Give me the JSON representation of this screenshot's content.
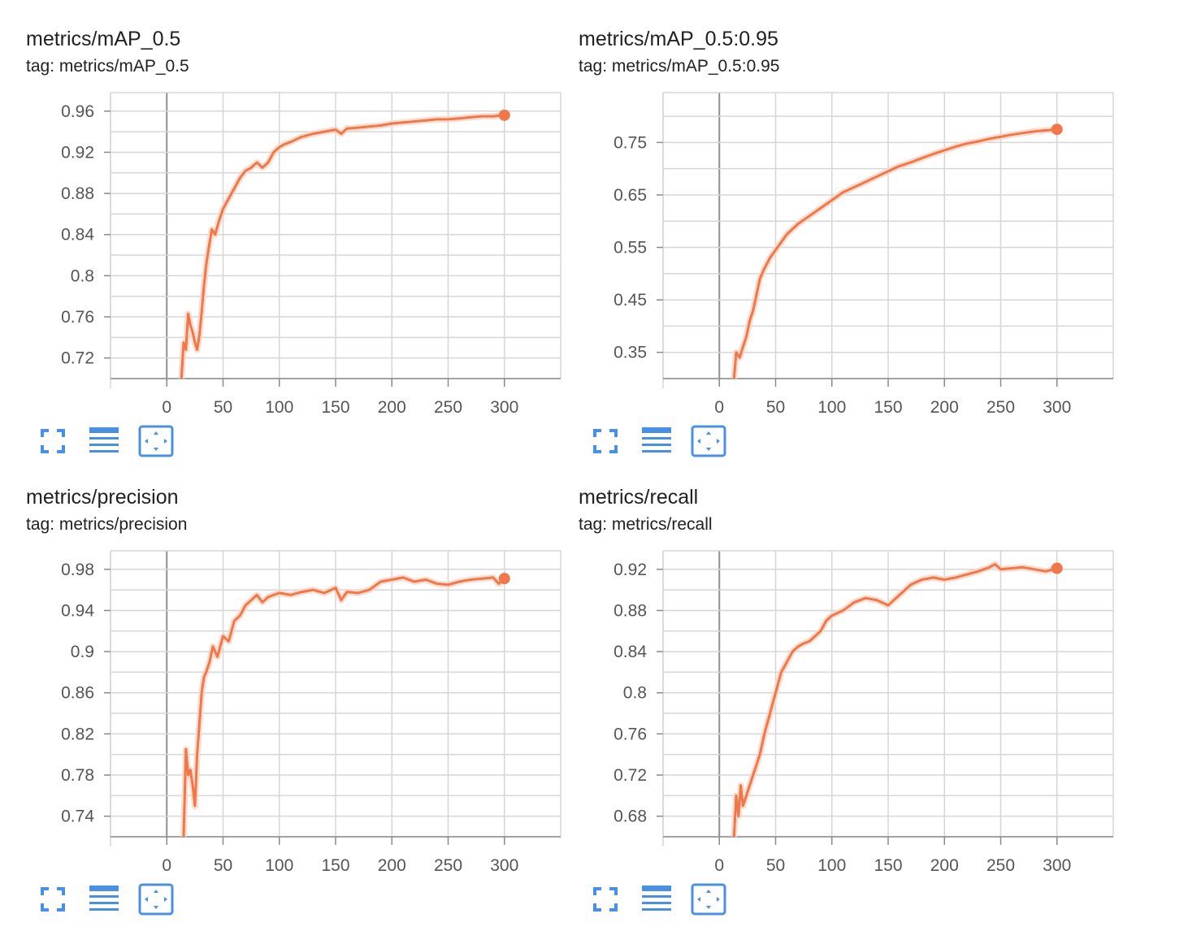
{
  "colors": {
    "line": "#f0774a",
    "raw_line": "#fbd6c5",
    "grid": "#d6d6d6",
    "axis": "#8a8a8a",
    "zero_line": "#8f8f8f",
    "icon": "#4a90e2"
  },
  "toolbar_icons": [
    "fullscreen-icon",
    "data-table-icon",
    "fit-domain-icon"
  ],
  "cards": [
    {
      "title": "metrics/mAP_0.5",
      "tag": "tag: metrics/mAP_0.5",
      "chart_data": {
        "type": "line",
        "title": "metrics/mAP_0.5",
        "x_ticks": [
          "0",
          "50",
          "100",
          "150",
          "200",
          "250",
          "300"
        ],
        "y_ticks": [
          "0.72",
          "0.76",
          "0.8",
          "0.84",
          "0.88",
          "0.92",
          "0.96"
        ],
        "y_tick_values": [
          0.72,
          0.76,
          0.8,
          0.84,
          0.88,
          0.92,
          0.96
        ],
        "xlim": [
          -50,
          350
        ],
        "ylim": [
          0.7,
          0.978
        ],
        "grid": true,
        "series": [
          {
            "x": [
              13,
              15,
              17,
              19,
              21,
              23,
              25,
              27,
              29,
              31,
              33,
              35,
              37,
              40,
              43,
              46,
              50,
              55,
              60,
              65,
              70,
              75,
              80,
              85,
              90,
              95,
              100,
              105,
              110,
              120,
              130,
              140,
              150,
              155,
              160,
              170,
              180,
              190,
              200,
              210,
              220,
              230,
              240,
              250,
              260,
              270,
              280,
              290,
              300
            ],
            "y": [
              0.7,
              0.735,
              0.728,
              0.763,
              0.752,
              0.745,
              0.735,
              0.728,
              0.742,
              0.765,
              0.79,
              0.81,
              0.825,
              0.845,
              0.84,
              0.852,
              0.865,
              0.875,
              0.885,
              0.895,
              0.902,
              0.905,
              0.91,
              0.905,
              0.91,
              0.92,
              0.925,
              0.928,
              0.93,
              0.935,
              0.938,
              0.94,
              0.942,
              0.938,
              0.943,
              0.944,
              0.945,
              0.946,
              0.948,
              0.949,
              0.95,
              0.951,
              0.952,
              0.952,
              0.953,
              0.954,
              0.955,
              0.955,
              0.956
            ]
          }
        ]
      }
    },
    {
      "title": "metrics/mAP_0.5:0.95",
      "tag": "tag: metrics/mAP_0.5:0.95",
      "chart_data": {
        "type": "line",
        "title": "metrics/mAP_0.5:0.95",
        "x_ticks": [
          "0",
          "50",
          "100",
          "150",
          "200",
          "250",
          "300"
        ],
        "y_ticks": [
          "0.35",
          "0.45",
          "0.55",
          "0.65",
          "0.75"
        ],
        "y_tick_values": [
          0.35,
          0.45,
          0.55,
          0.65,
          0.75
        ],
        "xlim": [
          -50,
          350
        ],
        "ylim": [
          0.3,
          0.845
        ],
        "grid": true,
        "series": [
          {
            "x": [
              13,
              15,
              18,
              21,
              24,
              27,
              30,
              33,
              36,
              40,
              45,
              50,
              55,
              60,
              70,
              80,
              90,
              100,
              110,
              120,
              130,
              140,
              150,
              160,
              170,
              180,
              190,
              200,
              210,
              220,
              230,
              240,
              250,
              260,
              270,
              280,
              290,
              300
            ],
            "y": [
              0.3,
              0.35,
              0.34,
              0.36,
              0.38,
              0.41,
              0.43,
              0.46,
              0.49,
              0.51,
              0.53,
              0.545,
              0.56,
              0.575,
              0.595,
              0.61,
              0.625,
              0.64,
              0.655,
              0.665,
              0.675,
              0.685,
              0.695,
              0.705,
              0.712,
              0.72,
              0.728,
              0.735,
              0.742,
              0.748,
              0.752,
              0.757,
              0.761,
              0.765,
              0.768,
              0.771,
              0.773,
              0.775
            ]
          }
        ]
      }
    },
    {
      "title": "metrics/precision",
      "tag": "tag: metrics/precision",
      "chart_data": {
        "type": "line",
        "title": "metrics/precision",
        "x_ticks": [
          "0",
          "50",
          "100",
          "150",
          "200",
          "250",
          "300"
        ],
        "y_ticks": [
          "0.74",
          "0.78",
          "0.82",
          "0.86",
          "0.9",
          "0.94",
          "0.98"
        ],
        "y_tick_values": [
          0.74,
          0.78,
          0.82,
          0.86,
          0.9,
          0.94,
          0.98
        ],
        "xlim": [
          -50,
          350
        ],
        "ylim": [
          0.72,
          0.998
        ],
        "grid": true,
        "series": [
          {
            "x": [
              15,
              17,
              19,
              21,
              23,
              25,
              27,
              29,
              31,
              33,
              35,
              38,
              41,
              45,
              50,
              55,
              60,
              65,
              70,
              75,
              80,
              85,
              90,
              95,
              100,
              110,
              120,
              130,
              140,
              150,
              155,
              160,
              170,
              180,
              190,
              200,
              210,
              220,
              230,
              240,
              250,
              260,
              270,
              280,
              290,
              295,
              300
            ],
            "y": [
              0.72,
              0.805,
              0.78,
              0.785,
              0.77,
              0.75,
              0.8,
              0.83,
              0.86,
              0.875,
              0.88,
              0.89,
              0.905,
              0.895,
              0.915,
              0.91,
              0.93,
              0.935,
              0.945,
              0.95,
              0.955,
              0.948,
              0.953,
              0.955,
              0.957,
              0.955,
              0.958,
              0.96,
              0.957,
              0.962,
              0.95,
              0.958,
              0.957,
              0.96,
              0.968,
              0.97,
              0.972,
              0.968,
              0.97,
              0.966,
              0.965,
              0.968,
              0.97,
              0.971,
              0.972,
              0.966,
              0.971
            ]
          }
        ]
      }
    },
    {
      "title": "metrics/recall",
      "tag": "tag: metrics/recall",
      "chart_data": {
        "type": "line",
        "title": "metrics/recall",
        "x_ticks": [
          "0",
          "50",
          "100",
          "150",
          "200",
          "250",
          "300"
        ],
        "y_ticks": [
          "0.68",
          "0.72",
          "0.76",
          "0.8",
          "0.84",
          "0.88",
          "0.92"
        ],
        "y_tick_values": [
          0.68,
          0.72,
          0.76,
          0.8,
          0.84,
          0.88,
          0.92
        ],
        "xlim": [
          -50,
          350
        ],
        "ylim": [
          0.66,
          0.938
        ],
        "grid": true,
        "series": [
          {
            "x": [
              13,
              15,
              17,
              19,
              21,
              24,
              27,
              30,
              33,
              36,
              40,
              45,
              50,
              55,
              60,
              65,
              70,
              75,
              80,
              85,
              90,
              95,
              100,
              110,
              120,
              130,
              140,
              150,
              155,
              160,
              170,
              180,
              190,
              200,
              210,
              220,
              230,
              240,
              245,
              250,
              260,
              270,
              280,
              290,
              300
            ],
            "y": [
              0.66,
              0.7,
              0.68,
              0.71,
              0.69,
              0.7,
              0.71,
              0.72,
              0.73,
              0.74,
              0.76,
              0.78,
              0.8,
              0.82,
              0.83,
              0.84,
              0.845,
              0.848,
              0.85,
              0.855,
              0.86,
              0.87,
              0.875,
              0.88,
              0.888,
              0.892,
              0.89,
              0.885,
              0.89,
              0.895,
              0.905,
              0.91,
              0.912,
              0.91,
              0.912,
              0.915,
              0.918,
              0.922,
              0.925,
              0.92,
              0.921,
              0.922,
              0.92,
              0.918,
              0.921
            ]
          }
        ]
      }
    }
  ]
}
